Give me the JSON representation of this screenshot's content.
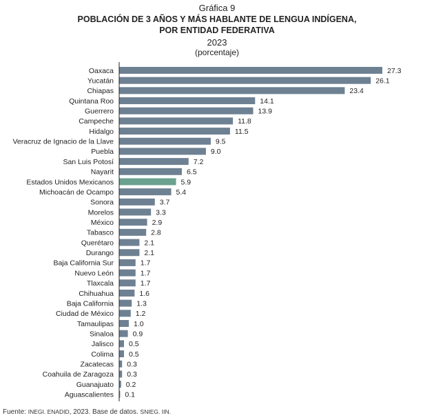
{
  "header": {
    "label": "Gráfica 9",
    "title_line1": "POBLACIÓN DE 3 AÑOS Y MÁS HABLANTE DE LENGUA INDÍGENA,",
    "title_line2": "POR ENTIDAD FEDERATIVA",
    "year": "2023",
    "unit": "(porcentaje)"
  },
  "colors": {
    "bar": "#6e8193",
    "highlight": "#6aa18f",
    "axis": "#222222"
  },
  "chart_data": {
    "type": "bar",
    "orientation": "horizontal",
    "title": "POBLACIÓN DE 3 AÑOS Y MÁS HABLANTE DE LENGUA INDÍGENA, POR ENTIDAD FEDERATIVA",
    "subtitle": "2023 (porcentaje)",
    "xlim": [
      0,
      28
    ],
    "grid": false,
    "highlighted_category": "Estados Unidos Mexicanos",
    "categories": [
      "Oaxaca",
      "Yucatán",
      "Chiapas",
      "Quintana Roo",
      "Guerrero",
      "Campeche",
      "Hidalgo",
      "Veracruz de Ignacio de la Llave",
      "Puebla",
      "San Luis Potosí",
      "Nayarit",
      "Estados Unidos Mexicanos",
      "Michoacán de Ocampo",
      "Sonora",
      "Morelos",
      "México",
      "Tabasco",
      "Querétaro",
      "Durango",
      "Baja California Sur",
      "Nuevo León",
      "Tlaxcala",
      "Chihuahua",
      "Baja California",
      "Ciudad de México",
      "Tamaulipas",
      "Sinaloa",
      "Jalisco",
      "Colima",
      "Zacatecas",
      "Coahuila de Zaragoza",
      "Guanajuato",
      "Aguascalientes"
    ],
    "values": [
      27.3,
      26.1,
      23.4,
      14.1,
      13.9,
      11.8,
      11.5,
      9.5,
      9.0,
      7.2,
      6.5,
      5.9,
      5.4,
      3.7,
      3.3,
      2.9,
      2.8,
      2.1,
      2.1,
      1.7,
      1.7,
      1.7,
      1.6,
      1.3,
      1.2,
      1.0,
      0.9,
      0.5,
      0.5,
      0.3,
      0.3,
      0.2,
      0.1
    ],
    "value_labels": [
      "27.3",
      "26.1",
      "23.4",
      "14.1",
      "13.9",
      "11.8",
      "11.5",
      "9.5",
      "9.0",
      "7.2",
      "6.5",
      "5.9",
      "5.4",
      "3.7",
      "3.3",
      "2.9",
      "2.8",
      "2.1",
      "2.1",
      "1.7",
      "1.7",
      "1.7",
      "1.6",
      "1.3",
      "1.2",
      "1.0",
      "0.9",
      "0.5",
      "0.5",
      "0.3",
      "0.3",
      "0.2",
      "0.1"
    ]
  },
  "source": {
    "prefix": "Fuente: ",
    "org": "INEGI. ENADID",
    "mid": ", 2023. Base de datos. ",
    "ref": "SNIEG. IIN."
  }
}
